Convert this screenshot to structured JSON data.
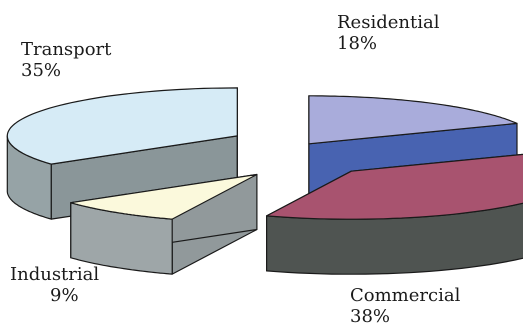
{
  "chart_data": {
    "type": "pie",
    "title": "",
    "slices": [
      {
        "label": "Residential",
        "value": 18,
        "value_label": "18%",
        "top_color": "#a9acdb",
        "front_color": "#4e6cc0",
        "exploded": false
      },
      {
        "label": "Commercial",
        "value": 38,
        "value_label": "38%",
        "top_color": "#a8536f",
        "front_color": "#4f5451",
        "exploded": true
      },
      {
        "label": "Industrial",
        "value": 9,
        "value_label": "9%",
        "top_color": "#fbf9dc",
        "front_color": "#9ea6a8",
        "exploded": true
      },
      {
        "label": "Transport",
        "value": 35,
        "value_label": "35%",
        "top_color": "#d6ebf6",
        "front_color": "#96a3a6",
        "exploded": true
      }
    ],
    "style": "3d-exploded",
    "outline_color": "#1a1a1a"
  }
}
